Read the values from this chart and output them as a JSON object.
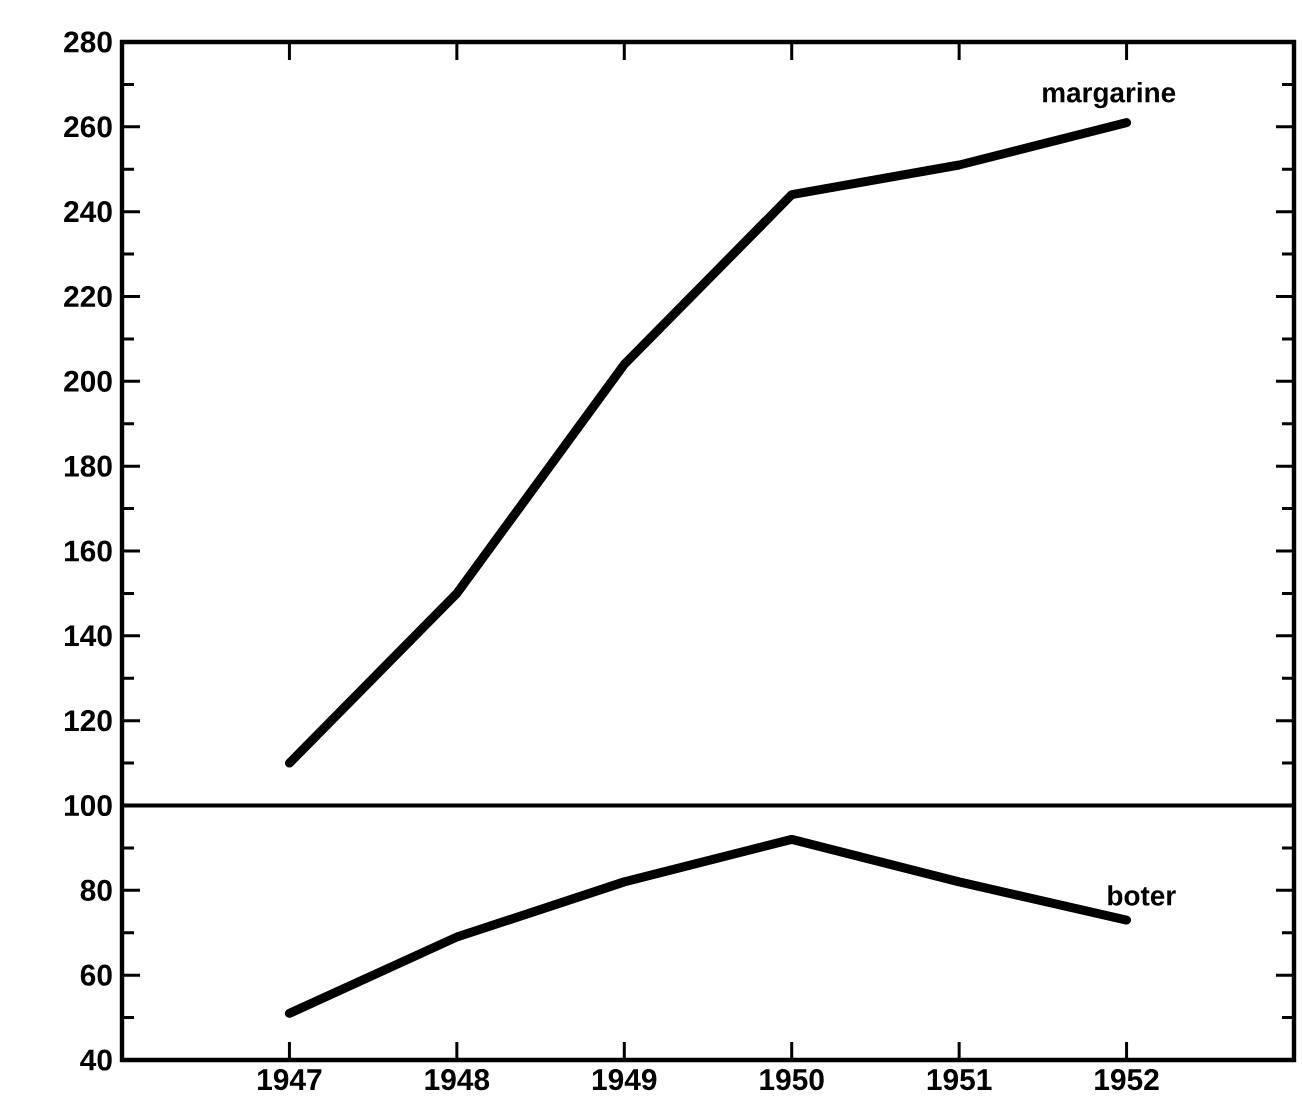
{
  "chart_data": {
    "type": "line",
    "x": [
      1947,
      1948,
      1949,
      1950,
      1951,
      1952
    ],
    "series": [
      {
        "name": "margarine",
        "color": "#000000",
        "values": [
          110,
          150,
          204,
          244,
          251,
          261
        ]
      },
      {
        "name": "boter",
        "color": "#000000",
        "values": [
          51,
          69,
          82,
          92,
          82,
          73
        ]
      }
    ],
    "xlim": [
      1946,
      1953
    ],
    "xticks": [
      1947,
      1948,
      1949,
      1950,
      1951,
      1952
    ],
    "ylim": [
      40,
      280
    ],
    "yticks": [
      40,
      60,
      80,
      100,
      120,
      140,
      160,
      180,
      200,
      220,
      240,
      260,
      280
    ],
    "ref_lines": [
      {
        "axis": "y",
        "value": 100,
        "color": "#000000"
      }
    ],
    "grid": false,
    "marker": "none",
    "line_style": "solid"
  }
}
